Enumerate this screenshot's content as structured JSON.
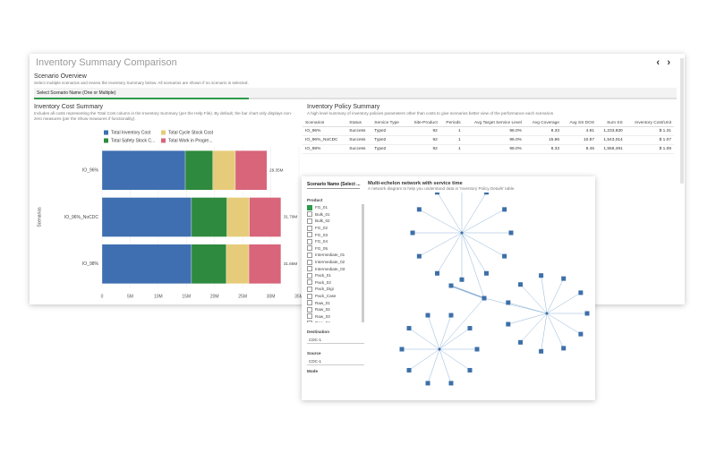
{
  "header": {
    "title": "Inventory Summary Comparison",
    "prev": "‹",
    "next": "›"
  },
  "scenario_overview": {
    "title": "Scenario Overview",
    "description": "Select multiple scenarios and review the Inventory Summary below. All scenarios are shown if no scenario is selected.",
    "tab": "Select Scenario Name (One or Multiple)"
  },
  "cost_summary": {
    "title": "Inventory Cost Summary",
    "description": "Includes all costs representing the Total Cost column in the Inventory Summary (per the Help File). By default, the bar chart only displays non-zero measures (per the Show measures if functionality).",
    "chart_data": {
      "type": "stacked-bar-horizontal",
      "y_label": "Scenarios",
      "categories": [
        "IO_96%",
        "IO_96%_NoCDC",
        "IO_98%"
      ],
      "series": [
        {
          "name": "Total Inventory Cost",
          "color": "#3f6fb0",
          "values": [
            14800000,
            15900000,
            15900000
          ]
        },
        {
          "name": "Total Safety Stock C...",
          "color": "#2e8a3e",
          "values": [
            4900000,
            6300000,
            6200000
          ]
        },
        {
          "name": "Total Cycle Stock Cost",
          "color": "#e6cc7a",
          "values": [
            4000000,
            4000000,
            4000000
          ]
        },
        {
          "name": "Total Work in Progre...",
          "color": "#d8657a",
          "values": [
            5600000,
            5600000,
            5700000
          ]
        }
      ],
      "total_labels": [
        "29.35M",
        "31.79M",
        "31.66M"
      ],
      "xlim": [
        0,
        35000000
      ],
      "xticks": [
        {
          "value": 0,
          "label": "0"
        },
        {
          "value": 5000000,
          "label": "5M"
        },
        {
          "value": 10000000,
          "label": "10M"
        },
        {
          "value": 15000000,
          "label": "15M"
        },
        {
          "value": 20000000,
          "label": "20M"
        },
        {
          "value": 25000000,
          "label": "25M"
        },
        {
          "value": 30000000,
          "label": "30M"
        },
        {
          "value": 35000000,
          "label": "35M"
        }
      ]
    }
  },
  "policy_summary": {
    "title": "Inventory Policy Summary",
    "description": "A high level summary of inventory policies parameters other than costs to give scenarios better view of the performance each scenarios",
    "table": {
      "columns": [
        "Scenarios",
        "Status",
        "Service Type",
        "Site-Product",
        "Periods",
        "Avg Target Service Level",
        "Avg Coverage",
        "Avg SS DOS",
        "Sum SS",
        "Inventory Cost/Unit"
      ],
      "rows": [
        [
          "IO_96%",
          "Success",
          "Type2",
          "92",
          "1",
          "96.0%",
          "8.33",
          "4.81",
          "1,233,830",
          "$ 1.31"
        ],
        [
          "IO_96%_NoCDC",
          "Success",
          "Type2",
          "92",
          "1",
          "96.0%",
          "15.86",
          "10.87",
          "1,543,014",
          "$ 1.07"
        ],
        [
          "IO_98%",
          "Success",
          "Type2",
          "92",
          "1",
          "98.0%",
          "8.33",
          "8.45",
          "1,558,491",
          "$ 1.08"
        ]
      ]
    }
  },
  "network": {
    "filter_tab": "Scenario Name (Select ...",
    "title": "Multi-echelon network with service time",
    "description": "A network diagram to help you understand data in 'Inventory Policy Details' table.",
    "product_label": "Product",
    "products": [
      "FG_01",
      "Bulk_01",
      "Bulk_02",
      "FG_02",
      "FG_03",
      "FG_04",
      "FG_05",
      "Intermediate_01",
      "Intermediate_02",
      "Intermediate_03",
      "Pack_01",
      "Pack_02",
      "Pack_Digi",
      "Pack_Case",
      "Raw_01",
      "Raw_02",
      "Raw_03",
      "Raw_04",
      "Raw_05"
    ],
    "destination_label": "Destination",
    "destination": "CDC-1",
    "source_label": "Source",
    "source": "CDC-1",
    "mode_label": "Mode"
  }
}
